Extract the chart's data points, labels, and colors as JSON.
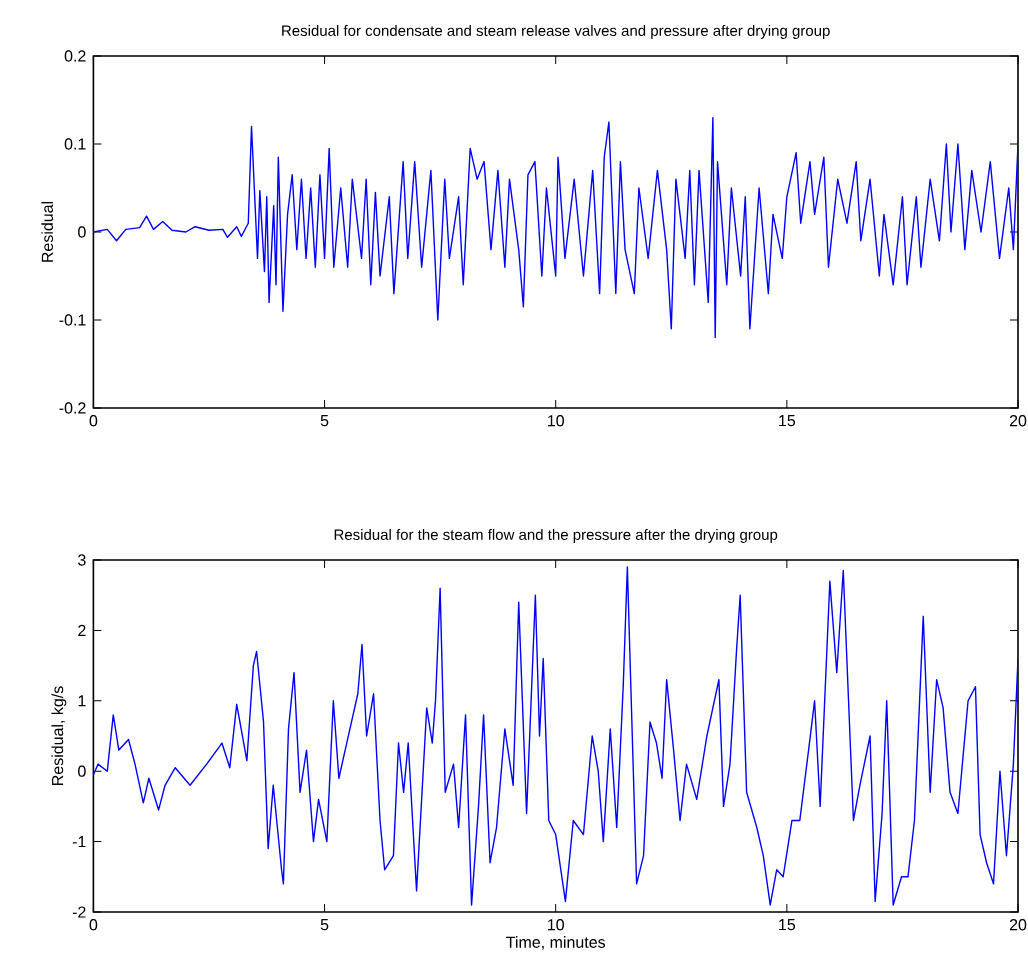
{
  "chart_data": [
    {
      "type": "line",
      "title": "Residual for condensate and steam release valves and pressure after drying group",
      "ylabel": "Residual",
      "color": "#0000ff",
      "xlim": [
        0,
        20
      ],
      "ylim": [
        -0.2,
        0.2
      ],
      "xticks": [
        0,
        5,
        10,
        15,
        20
      ],
      "yticks": [
        -0.2,
        -0.1,
        0,
        0.1,
        0.2
      ],
      "x": [
        0,
        0.3,
        0.5,
        0.7,
        1.0,
        1.15,
        1.3,
        1.5,
        1.7,
        2.0,
        2.2,
        2.5,
        2.8,
        2.9,
        3.1,
        3.2,
        3.35,
        3.42,
        3.55,
        3.6,
        3.7,
        3.75,
        3.8,
        3.9,
        3.95,
        4.0,
        4.1,
        4.2,
        4.3,
        4.4,
        4.5,
        4.6,
        4.7,
        4.8,
        4.9,
        5.0,
        5.1,
        5.2,
        5.35,
        5.5,
        5.6,
        5.8,
        5.9,
        6.0,
        6.1,
        6.2,
        6.4,
        6.5,
        6.7,
        6.8,
        6.95,
        7.1,
        7.3,
        7.45,
        7.6,
        7.7,
        7.9,
        8.0,
        8.15,
        8.3,
        8.45,
        8.6,
        8.75,
        8.9,
        9.0,
        9.2,
        9.3,
        9.4,
        9.55,
        9.7,
        9.8,
        10.0,
        10.05,
        10.2,
        10.4,
        10.6,
        10.8,
        10.95,
        11.05,
        11.15,
        11.3,
        11.4,
        11.5,
        11.7,
        11.8,
        12.0,
        12.2,
        12.4,
        12.5,
        12.6,
        12.8,
        12.9,
        13.0,
        13.1,
        13.3,
        13.4,
        13.45,
        13.5,
        13.7,
        13.8,
        14.0,
        14.1,
        14.2,
        14.4,
        14.6,
        14.7,
        14.9,
        15.0,
        15.2,
        15.3,
        15.5,
        15.6,
        15.8,
        15.9,
        16.1,
        16.3,
        16.5,
        16.6,
        16.8,
        17.0,
        17.1,
        17.3,
        17.5,
        17.6,
        17.8,
        17.9,
        18.1,
        18.3,
        18.45,
        18.55,
        18.7,
        18.85,
        19.0,
        19.2,
        19.4,
        19.6,
        19.8,
        19.9,
        20.0
      ],
      "values": [
        0,
        0.003,
        -0.01,
        0.003,
        0.005,
        0.018,
        0.003,
        0.012,
        0.002,
        0,
        0.006,
        0.002,
        0.003,
        -0.006,
        0.006,
        -0.005,
        0.01,
        0.12,
        -0.03,
        0.047,
        -0.045,
        0.04,
        -0.08,
        0.03,
        -0.06,
        0.085,
        -0.09,
        0.02,
        0.065,
        -0.02,
        0.06,
        -0.03,
        0.05,
        -0.04,
        0.065,
        -0.03,
        0.095,
        -0.04,
        0.05,
        -0.04,
        0.06,
        -0.03,
        0.06,
        -0.06,
        0.045,
        -0.05,
        0.04,
        -0.07,
        0.08,
        -0.03,
        0.08,
        -0.04,
        0.07,
        -0.1,
        0.06,
        -0.03,
        0.04,
        -0.06,
        0.095,
        0.06,
        0.08,
        -0.02,
        0.07,
        -0.04,
        0.06,
        -0.02,
        -0.085,
        0.065,
        0.08,
        -0.05,
        0.05,
        -0.05,
        0.085,
        -0.03,
        0.06,
        -0.05,
        0.07,
        -0.07,
        0.085,
        0.125,
        -0.07,
        0.08,
        -0.02,
        -0.07,
        0.05,
        -0.03,
        0.07,
        -0.02,
        -0.11,
        0.06,
        -0.03,
        0.07,
        -0.06,
        0.07,
        -0.08,
        0.13,
        -0.12,
        0.08,
        -0.06,
        0.05,
        -0.05,
        0.04,
        -0.11,
        0.05,
        -0.07,
        0.02,
        -0.03,
        0.04,
        0.09,
        0.01,
        0.08,
        0.02,
        0.085,
        -0.04,
        0.06,
        0.01,
        0.08,
        -0.01,
        0.06,
        -0.05,
        0.02,
        -0.06,
        0.04,
        -0.06,
        0.04,
        -0.04,
        0.06,
        -0.01,
        0.1,
        0,
        0.1,
        -0.02,
        0.07,
        0,
        0.08,
        -0.03,
        0.05,
        -0.02,
        0.1
      ]
    },
    {
      "type": "line",
      "title": "Residual for the steam flow and the pressure after the drying group",
      "xlabel": "Time, minutes",
      "ylabel": "Residual, kg/s",
      "color": "#0000ff",
      "xlim": [
        0,
        20
      ],
      "ylim": [
        -2,
        3
      ],
      "xticks": [
        0,
        5,
        10,
        15,
        20
      ],
      "yticks": [
        -2,
        -1,
        0,
        1,
        2,
        3
      ],
      "x": [
        0,
        0.1,
        0.3,
        0.43,
        0.55,
        0.76,
        0.9,
        1.08,
        1.2,
        1.41,
        1.55,
        1.77,
        2.09,
        2.45,
        2.78,
        2.95,
        3.1,
        3.32,
        3.46,
        3.53,
        3.68,
        3.78,
        3.89,
        4.07,
        4.11,
        4.22,
        4.34,
        4.47,
        4.61,
        4.76,
        4.87,
        5.05,
        5.19,
        5.31,
        5.48,
        5.72,
        5.81,
        5.91,
        6.06,
        6.2,
        6.3,
        6.49,
        6.6,
        6.71,
        6.81,
        6.99,
        7.21,
        7.33,
        7.4,
        7.5,
        7.61,
        7.79,
        7.9,
        8.05,
        8.18,
        8.33,
        8.44,
        8.58,
        8.72,
        8.9,
        9.08,
        9.2,
        9.37,
        9.56,
        9.65,
        9.73,
        9.85,
        10.0,
        10.21,
        10.38,
        10.6,
        10.79,
        10.92,
        11.03,
        11.18,
        11.32,
        11.46,
        11.55,
        11.75,
        11.9,
        12.04,
        12.18,
        12.3,
        12.4,
        12.55,
        12.69,
        12.83,
        13.05,
        13.27,
        13.53,
        13.63,
        13.77,
        13.91,
        13.99,
        14.13,
        14.35,
        14.49,
        14.64,
        14.78,
        14.92,
        15.11,
        15.28,
        15.47,
        15.6,
        15.72,
        15.93,
        16.08,
        16.22,
        16.44,
        16.58,
        16.8,
        16.91,
        17.06,
        17.16,
        17.3,
        17.48,
        17.62,
        17.76,
        17.95,
        18.1,
        18.24,
        18.38,
        18.53,
        18.7,
        18.92,
        19.08,
        19.18,
        19.32,
        19.47,
        19.61,
        19.75,
        19.9,
        20.0
      ],
      "values": [
        -0.05,
        0.1,
        0,
        0.8,
        0.3,
        0.45,
        0.1,
        -0.45,
        -0.1,
        -0.55,
        -0.2,
        0.05,
        -0.2,
        0.1,
        0.4,
        0.05,
        0.95,
        0.15,
        1.5,
        1.7,
        0.7,
        -1.1,
        -0.2,
        -1.4,
        -1.6,
        0.6,
        1.4,
        -0.3,
        0.3,
        -1.0,
        -0.4,
        -1.0,
        1.0,
        -0.1,
        0.4,
        1.1,
        1.8,
        0.5,
        1.1,
        -0.7,
        -1.4,
        -1.2,
        0.4,
        -0.3,
        0.4,
        -1.7,
        0.9,
        0.4,
        1.0,
        2.6,
        -0.3,
        0.1,
        -0.8,
        0.8,
        -1.9,
        -0.5,
        0.8,
        -1.3,
        -0.8,
        0.6,
        -0.2,
        2.4,
        -0.6,
        2.5,
        0.5,
        1.6,
        -0.7,
        -0.9,
        -1.85,
        -0.7,
        -0.9,
        0.5,
        0,
        -1.0,
        0.6,
        -0.8,
        1.2,
        2.9,
        -1.6,
        -1.2,
        0.7,
        0.4,
        -0.1,
        1.3,
        0.3,
        -0.7,
        0.1,
        -0.4,
        0.5,
        1.3,
        -0.5,
        0.1,
        1.7,
        2.5,
        -0.3,
        -0.8,
        -1.2,
        -1.9,
        -1.4,
        -1.5,
        -0.7,
        -0.7,
        0.3,
        1.0,
        -0.5,
        2.7,
        1.4,
        2.85,
        -0.7,
        -0.2,
        0.5,
        -1.85,
        -0.6,
        1.0,
        -1.9,
        -1.5,
        -1.5,
        -0.7,
        2.2,
        -0.3,
        1.3,
        0.9,
        -0.3,
        -0.6,
        1.0,
        1.2,
        -0.9,
        -1.3,
        -1.6,
        0,
        -1.2,
        0.1,
        1.6
      ]
    }
  ]
}
